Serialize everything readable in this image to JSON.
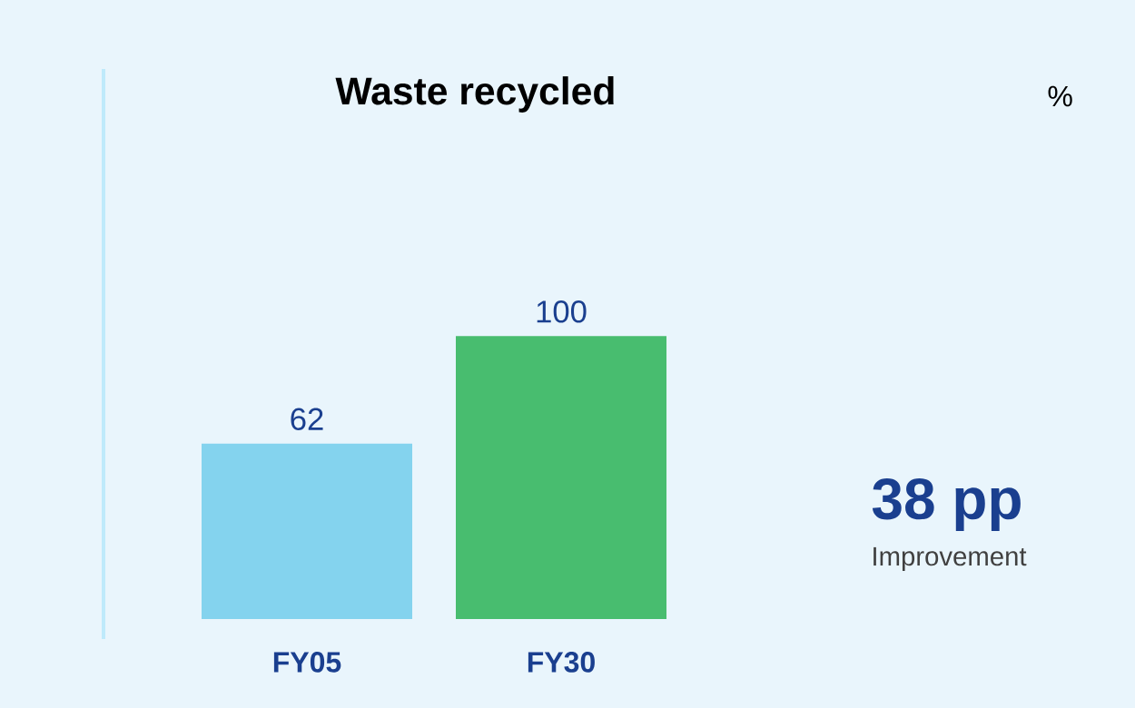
{
  "chart_data": {
    "type": "bar",
    "title": "Waste recycled",
    "categories": [
      "FY05",
      "FY30"
    ],
    "values": [
      62,
      100
    ],
    "colors": [
      "#84d3ee",
      "#48bd6f"
    ],
    "data_labels": true,
    "annotations": [
      "%",
      "38 pp",
      "Improvement"
    ]
  }
}
